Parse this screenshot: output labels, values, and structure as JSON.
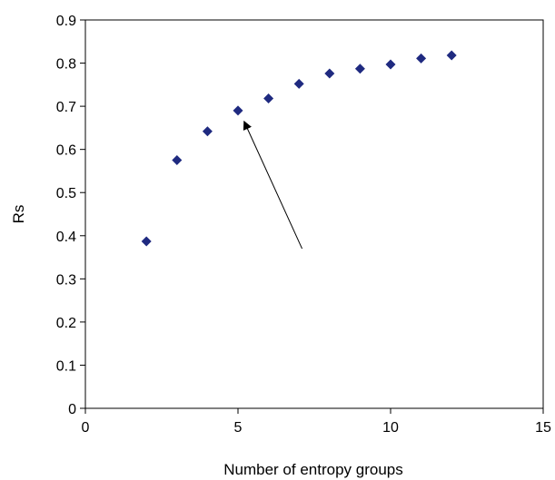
{
  "chart_data": {
    "type": "scatter",
    "title": "",
    "xlabel": "Number of entropy groups",
    "ylabel": "Rs",
    "xlim": [
      0,
      15
    ],
    "ylim": [
      0,
      0.9
    ],
    "x_ticks": [
      0,
      5,
      10,
      15
    ],
    "y_ticks": [
      0,
      0.1,
      0.2,
      0.3,
      0.4,
      0.5,
      0.6,
      0.7,
      0.8,
      0.9
    ],
    "x_tick_labels": [
      "0",
      "5",
      "10",
      "15"
    ],
    "y_tick_labels": [
      "0",
      "0.1",
      "0.2",
      "0.3",
      "0.4",
      "0.5",
      "0.6",
      "0.7",
      "0.8",
      "0.9"
    ],
    "grid": false,
    "legend": "none",
    "marker": "diamond",
    "marker_color": "#1f2a80",
    "series": [
      {
        "x": [
          2,
          3,
          4,
          5,
          6,
          7,
          8,
          9,
          10,
          11,
          12
        ],
        "y": [
          0.387,
          0.575,
          0.642,
          0.69,
          0.718,
          0.752,
          0.776,
          0.787,
          0.797,
          0.811,
          0.818
        ]
      }
    ],
    "annotations": [
      {
        "type": "arrow",
        "from": [
          7.1,
          0.37
        ],
        "to": [
          5.2,
          0.665
        ]
      }
    ]
  }
}
